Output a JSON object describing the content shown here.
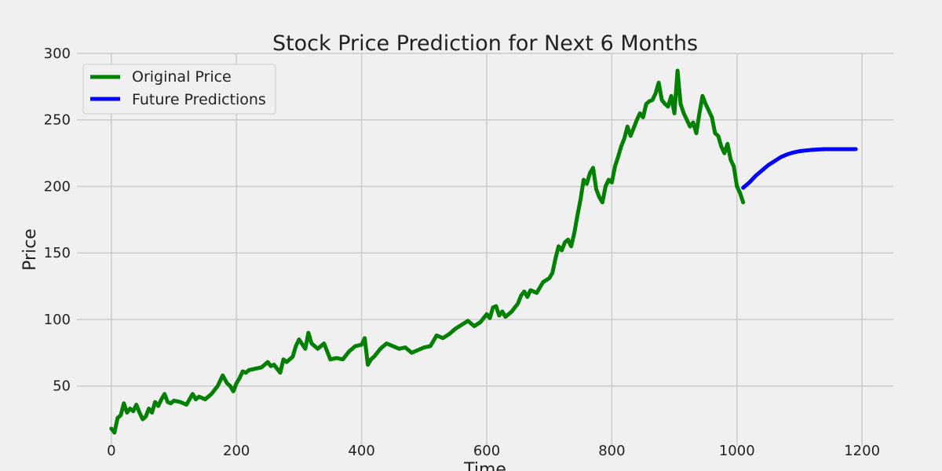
{
  "chart_data": {
    "type": "line",
    "title": "Stock Price Prediction for Next 6 Months",
    "xlabel": "Time",
    "ylabel": "Price",
    "xlim": [
      -55,
      1250
    ],
    "ylim": [
      5,
      300
    ],
    "xticks": [
      0,
      200,
      400,
      600,
      800,
      1000,
      1200
    ],
    "yticks": [
      50,
      100,
      150,
      200,
      250,
      300
    ],
    "grid": true,
    "legend_position": "top-left",
    "series": [
      {
        "name": "Original Price",
        "color": "#008000",
        "x": [
          0,
          5,
          10,
          15,
          20,
          25,
          30,
          35,
          40,
          45,
          50,
          55,
          60,
          65,
          70,
          75,
          80,
          85,
          90,
          95,
          100,
          110,
          120,
          130,
          135,
          140,
          150,
          160,
          170,
          178,
          185,
          190,
          195,
          200,
          205,
          210,
          215,
          220,
          230,
          240,
          250,
          255,
          260,
          270,
          275,
          280,
          290,
          295,
          300,
          310,
          315,
          320,
          330,
          340,
          350,
          360,
          370,
          380,
          390,
          400,
          405,
          410,
          415,
          420,
          430,
          440,
          450,
          460,
          470,
          480,
          490,
          500,
          510,
          520,
          530,
          540,
          550,
          560,
          570,
          580,
          590,
          600,
          605,
          610,
          615,
          620,
          625,
          630,
          640,
          650,
          655,
          660,
          665,
          670,
          680,
          690,
          700,
          705,
          710,
          715,
          720,
          725,
          730,
          735,
          740,
          745,
          750,
          755,
          760,
          765,
          770,
          775,
          780,
          785,
          790,
          795,
          800,
          805,
          810,
          815,
          820,
          825,
          830,
          835,
          840,
          845,
          850,
          855,
          860,
          865,
          870,
          875,
          880,
          885,
          890,
          895,
          900,
          905,
          910,
          915,
          920,
          925,
          930,
          935,
          940,
          945,
          950,
          955,
          960,
          965,
          970,
          975,
          980,
          985,
          990,
          995,
          1000,
          1005,
          1010
        ],
        "values": [
          18,
          15,
          26,
          28,
          37,
          30,
          33,
          31,
          36,
          30,
          25,
          27,
          33,
          30,
          38,
          35,
          40,
          44,
          38,
          37,
          39,
          38,
          36,
          44,
          40,
          42,
          40,
          44,
          50,
          58,
          52,
          50,
          46,
          52,
          56,
          61,
          60,
          62,
          63,
          64,
          68,
          65,
          66,
          60,
          70,
          68,
          72,
          80,
          85,
          78,
          90,
          82,
          78,
          82,
          70,
          71,
          70,
          76,
          80,
          81,
          86,
          66,
          70,
          72,
          78,
          82,
          80,
          78,
          79,
          75,
          77,
          79,
          80,
          88,
          86,
          89,
          93,
          96,
          99,
          95,
          98,
          104,
          101,
          109,
          110,
          103,
          106,
          102,
          106,
          112,
          118,
          121,
          117,
          122,
          120,
          128,
          131,
          135,
          146,
          155,
          152,
          158,
          160,
          155,
          165,
          178,
          190,
          205,
          202,
          210,
          214,
          198,
          192,
          188,
          200,
          205,
          203,
          215,
          222,
          230,
          236,
          245,
          238,
          244,
          250,
          255,
          252,
          262,
          264,
          265,
          270,
          278,
          265,
          262,
          260,
          268,
          255,
          287,
          262,
          255,
          250,
          245,
          248,
          240,
          255,
          268,
          262,
          257,
          252,
          240,
          238,
          230,
          225,
          232,
          220,
          215,
          200,
          195,
          188
        ]
      },
      {
        "name": "Future Predictions",
        "color": "#0000ff",
        "x": [
          1010,
          1020,
          1030,
          1040,
          1050,
          1060,
          1070,
          1080,
          1090,
          1100,
          1110,
          1120,
          1130,
          1140,
          1150,
          1160,
          1170,
          1180,
          1190
        ],
        "values": [
          199,
          203,
          208,
          212,
          216,
          219,
          222,
          224,
          225.5,
          226.5,
          227,
          227.5,
          227.8,
          228,
          228,
          228,
          228,
          228,
          228
        ]
      }
    ]
  }
}
